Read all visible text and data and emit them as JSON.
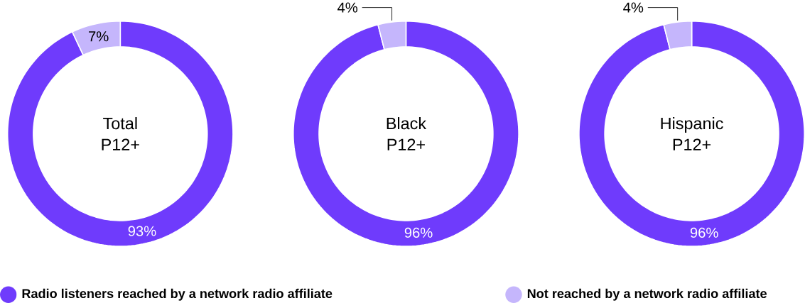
{
  "chart_data": [
    {
      "type": "donut",
      "title": "Total",
      "subtitle": "P12+",
      "categories": [
        "Radio listeners reached by a network radio affiliate",
        "Not reached by a network radio affiliate"
      ],
      "values": [
        93,
        7
      ],
      "colors": [
        "#6f3bfc",
        "#c5b6fc"
      ],
      "value_labels": [
        "93%",
        "7%"
      ],
      "legend": "bottom"
    },
    {
      "type": "donut",
      "title": "Black",
      "subtitle": "P12+",
      "categories": [
        null,
        null
      ],
      "values": [
        96,
        4
      ],
      "colors": [
        "#6f3bfc",
        "#c5b6fc"
      ],
      "value_labels": [
        "96%",
        "4%"
      ]
    },
    {
      "type": "donut",
      "title": "Hispanic",
      "subtitle": "P12+",
      "categories": [
        null,
        null
      ],
      "values": [
        96,
        4
      ],
      "colors": [
        "#6f3bfc",
        "#c5b6fc"
      ],
      "value_labels": [
        "96%",
        "4%"
      ]
    }
  ]
}
